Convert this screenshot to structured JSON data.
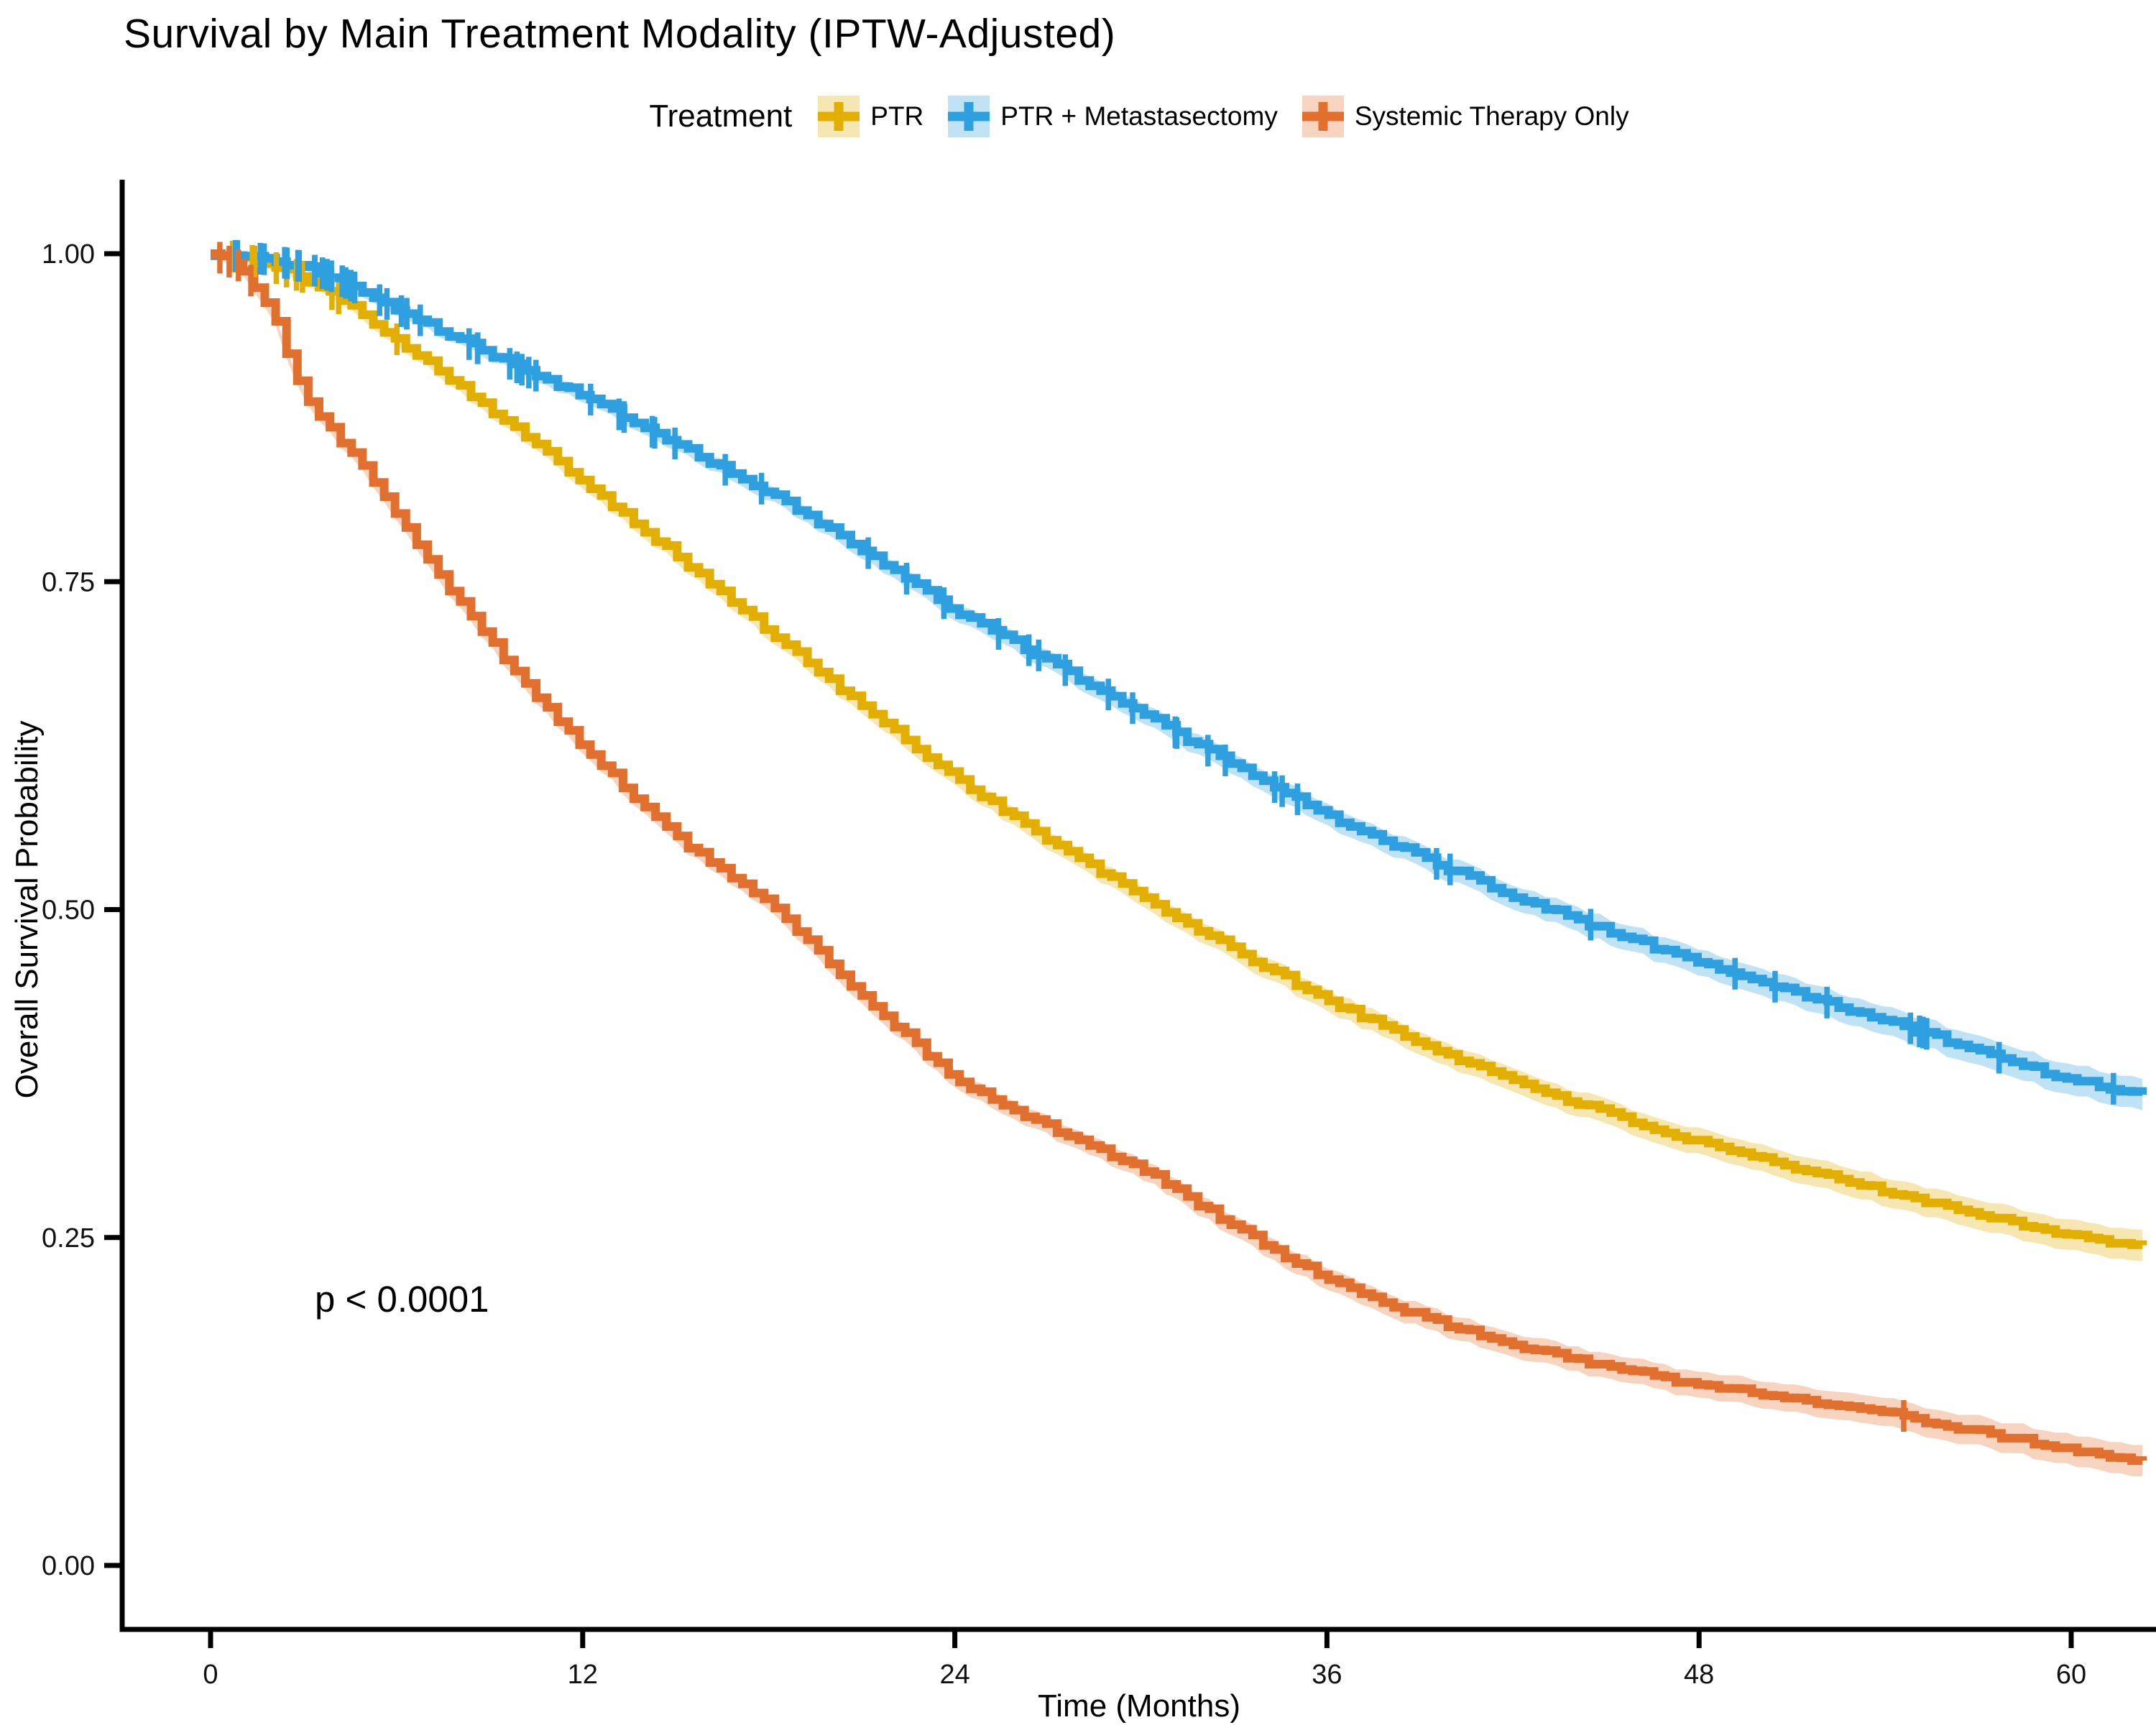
{
  "figure": {
    "title": "Survival by Main Treatment Modality (IPTW-Adjusted)",
    "p_value_text": "p < 0.0001"
  },
  "legend": {
    "title": "Treatment",
    "position": "top",
    "items": [
      {
        "label": "PTR"
      },
      {
        "label": "PTR + Metastasectomy"
      },
      {
        "label": "Systemic Therapy Only"
      }
    ]
  },
  "chart_data": {
    "type": "line",
    "subtype": "kaplan-meier-step-curves",
    "title": "Survival by Main Treatment Modality (IPTW-Adjusted)",
    "xlabel": "Time (Months)",
    "ylabel": "Overall Survival Probability",
    "annotation": "p < 0.0001",
    "xlim": [
      0,
      62.5
    ],
    "ylim": [
      0,
      1.0
    ],
    "x_ticks": [
      0,
      12,
      24,
      36,
      48,
      60
    ],
    "y_ticks": [
      "0.00",
      "0.25",
      "0.50",
      "0.75",
      "1.00"
    ],
    "grid": false,
    "legend_position": "top",
    "axis_color": "#000000",
    "ribbon_alpha": 0.3,
    "x": [
      0,
      1,
      2,
      3,
      4,
      5,
      6,
      8,
      10,
      12,
      15,
      18,
      21,
      24,
      27,
      30,
      33,
      36,
      39,
      42,
      45,
      48,
      51,
      54,
      57,
      60,
      62.5
    ],
    "series": [
      {
        "name": "PTR",
        "color": "#E2AF00",
        "censoring": "sparse-early",
        "values": [
          1.0,
          0.997,
          0.99,
          0.982,
          0.968,
          0.952,
          0.935,
          0.9,
          0.863,
          0.827,
          0.77,
          0.712,
          0.655,
          0.601,
          0.553,
          0.51,
          0.469,
          0.431,
          0.398,
          0.37,
          0.345,
          0.322,
          0.303,
          0.286,
          0.268,
          0.252,
          0.242
        ]
      },
      {
        "name": "PTR + Metastasectomy",
        "color": "#2E9FDF",
        "censoring": "dense-throughout",
        "values": [
          1.0,
          0.998,
          0.995,
          0.99,
          0.982,
          0.97,
          0.958,
          0.935,
          0.912,
          0.892,
          0.855,
          0.818,
          0.775,
          0.728,
          0.69,
          0.65,
          0.61,
          0.572,
          0.54,
          0.511,
          0.484,
          0.46,
          0.437,
          0.416,
          0.392,
          0.37,
          0.358
        ]
      },
      {
        "name": "Systemic Therapy Only",
        "color": "#E1702F",
        "censoring": "sparse",
        "values": [
          1.0,
          0.99,
          0.955,
          0.89,
          0.862,
          0.835,
          0.8,
          0.735,
          0.675,
          0.625,
          0.555,
          0.505,
          0.435,
          0.37,
          0.335,
          0.303,
          0.258,
          0.218,
          0.19,
          0.168,
          0.152,
          0.138,
          0.127,
          0.117,
          0.102,
          0.088,
          0.078
        ]
      }
    ]
  }
}
